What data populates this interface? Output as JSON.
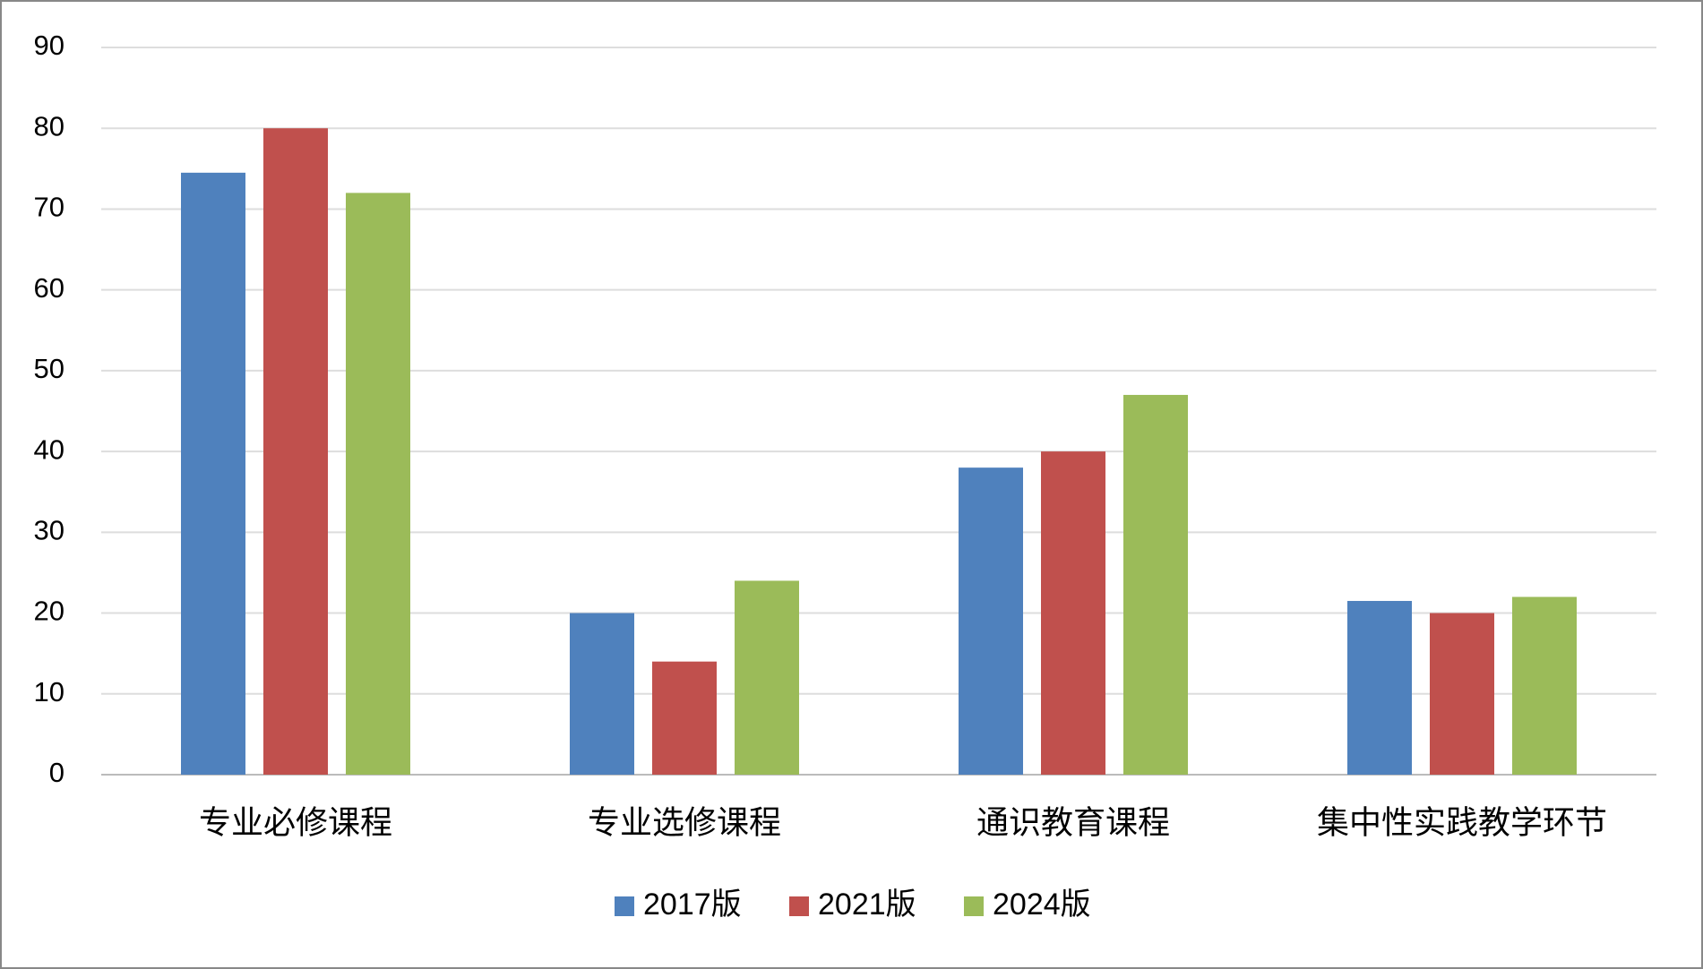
{
  "chart_data": {
    "type": "bar",
    "categories": [
      "专业必修课程",
      "专业选修课程",
      "通识教育课程",
      "集中性实践教学环节"
    ],
    "series": [
      {
        "name": "2017版",
        "color": "#4f81bd",
        "values": [
          74.5,
          20,
          38,
          21.5
        ]
      },
      {
        "name": "2021版",
        "color": "#c0504d",
        "values": [
          80,
          14,
          40,
          20
        ]
      },
      {
        "name": "2024版",
        "color": "#9bbb59",
        "values": [
          72,
          24,
          47,
          22
        ]
      }
    ],
    "ylim": [
      0,
      90
    ],
    "yticks": [
      0,
      10,
      20,
      30,
      40,
      50,
      60,
      70,
      80,
      90
    ],
    "grid": true,
    "legend": "bottom"
  }
}
